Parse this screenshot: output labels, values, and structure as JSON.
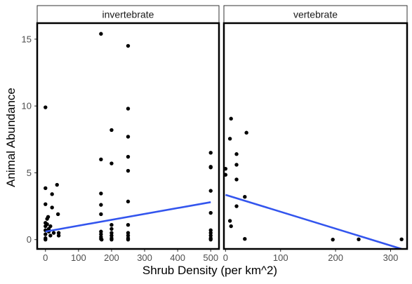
{
  "chart_data": {
    "type": "scatter",
    "xlabel": "Shrub Density (per km^2)",
    "ylabel": "Animal Abundance",
    "ylim": [
      -0.7,
      16.2
    ],
    "y_ticks": [
      0,
      5,
      10,
      15
    ],
    "grid": false,
    "colors": {
      "points": "#000000",
      "trend": "#3355ee",
      "panel_border": "#000000",
      "strip_fill": "#ffffff"
    },
    "panels": [
      {
        "strip": "invertebrate",
        "xlim": [
          -25,
          525
        ],
        "x_ticks": [
          0,
          100,
          200,
          300,
          400,
          500
        ],
        "points": [
          [
            0,
            9.9
          ],
          [
            0,
            3.85
          ],
          [
            0,
            2.65
          ],
          [
            0,
            1.25
          ],
          [
            0,
            1.0
          ],
          [
            0,
            0.7
          ],
          [
            0,
            0.4
          ],
          [
            0,
            0.1
          ],
          [
            0,
            0.0
          ],
          [
            5,
            1.55
          ],
          [
            5,
            1.15
          ],
          [
            8,
            1.7
          ],
          [
            10,
            0.8
          ],
          [
            10,
            0.6
          ],
          [
            15,
            1.0
          ],
          [
            15,
            0.3
          ],
          [
            20,
            3.4
          ],
          [
            20,
            2.4
          ],
          [
            25,
            0.5
          ],
          [
            35,
            4.1
          ],
          [
            38,
            1.9
          ],
          [
            40,
            0.5
          ],
          [
            40,
            0.3
          ],
          [
            168,
            15.4
          ],
          [
            168,
            6.0
          ],
          [
            168,
            3.45
          ],
          [
            168,
            2.6
          ],
          [
            168,
            1.9
          ],
          [
            168,
            0.6
          ],
          [
            168,
            0.4
          ],
          [
            168,
            0.2
          ],
          [
            168,
            0.05
          ],
          [
            170,
            0.0
          ],
          [
            200,
            8.2
          ],
          [
            200,
            5.7
          ],
          [
            200,
            1.1
          ],
          [
            200,
            0.8
          ],
          [
            200,
            0.5
          ],
          [
            200,
            0.3
          ],
          [
            200,
            0.1
          ],
          [
            200,
            0.0
          ],
          [
            250,
            14.5
          ],
          [
            250,
            9.8
          ],
          [
            250,
            7.7
          ],
          [
            250,
            6.2
          ],
          [
            250,
            5.15
          ],
          [
            250,
            2.85
          ],
          [
            250,
            1.1
          ],
          [
            250,
            0.5
          ],
          [
            250,
            0.3
          ],
          [
            250,
            0.1
          ],
          [
            250,
            0.0
          ],
          [
            500,
            6.5
          ],
          [
            500,
            5.4
          ],
          [
            500,
            5.45
          ],
          [
            500,
            3.65
          ],
          [
            500,
            2.0
          ],
          [
            500,
            0.7
          ],
          [
            500,
            0.5
          ],
          [
            500,
            0.3
          ],
          [
            500,
            0.1
          ],
          [
            500,
            0.0
          ]
        ],
        "trend": [
          [
            0,
            0.6
          ],
          [
            500,
            2.8
          ]
        ]
      },
      {
        "strip": "vertebrate",
        "xlim": [
          -3,
          330
        ],
        "x_ticks": [
          0,
          100,
          200,
          300
        ],
        "points": [
          [
            0,
            5.3
          ],
          [
            0,
            4.85
          ],
          [
            10,
            9.05
          ],
          [
            8,
            7.55
          ],
          [
            20,
            6.4
          ],
          [
            20,
            5.6
          ],
          [
            20,
            4.5
          ],
          [
            20,
            2.5
          ],
          [
            8,
            1.4
          ],
          [
            10,
            1.0
          ],
          [
            35,
            3.2
          ],
          [
            38,
            8.0
          ],
          [
            35,
            0.05
          ],
          [
            195,
            0.0
          ],
          [
            242,
            0.02
          ],
          [
            320,
            0.02
          ]
        ],
        "trend": [
          [
            0,
            3.35
          ],
          [
            320,
            -0.7
          ]
        ]
      }
    ]
  }
}
